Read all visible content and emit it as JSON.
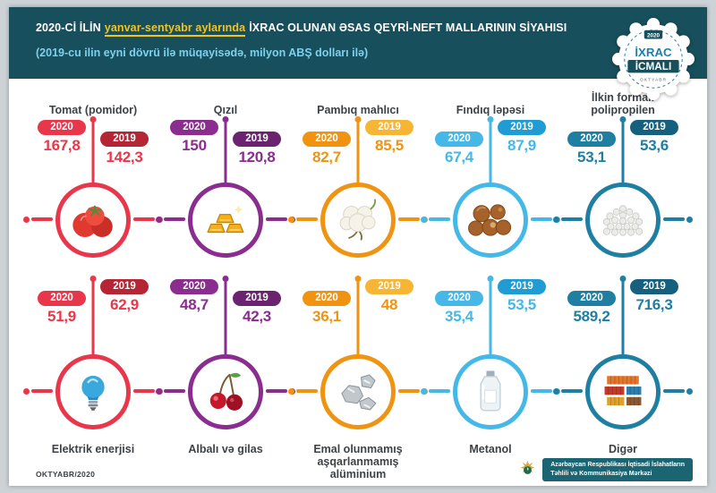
{
  "header": {
    "title_prefix": "2020-Cİ İLİN",
    "title_highlight": "yanvar-sentyabr aylarında",
    "title_suffix": "İXRAC OLUNAN ƏSAS QEYRİ-NEFT MALLARININ SİYAHISI",
    "subtitle": "(2019-cu ilin eyni dövrü ilə müqayisədə, milyon ABŞ dolları ilə)",
    "badge": {
      "year": "2020",
      "line1": "İXRAC",
      "line2": "İCMALI",
      "month": "OKTYABR"
    }
  },
  "labels": {
    "y2020": "2020",
    "y2019": "2019"
  },
  "colors": {
    "header_bg": "#174f5c",
    "highlight_yellow": "#f6c21c",
    "subtitle_blue": "#7ed0ec"
  },
  "products": [
    {
      "id": "tomato",
      "name": "Tomat (pomidor)",
      "value_2020": "167,8",
      "value_2019": "142,3",
      "color": "#e8374a",
      "color2": "#b52534",
      "icon": "tomato-icon"
    },
    {
      "id": "gold",
      "name": "Qızıl",
      "value_2020": "150",
      "value_2019": "120,8",
      "color": "#8a2d8e",
      "color2": "#6b2370",
      "icon": "gold-icon"
    },
    {
      "id": "cotton",
      "name": "Pambıq mahlıcı",
      "value_2020": "82,7",
      "value_2019": "85,5",
      "color": "#ef9311",
      "color2": "#f6b535",
      "icon": "cotton-icon"
    },
    {
      "id": "hazelnut",
      "name": "Fındıq ləpəsi",
      "value_2020": "67,4",
      "value_2019": "87,9",
      "color": "#45b8e8",
      "color2": "#1f9cd4",
      "icon": "hazelnut-icon"
    },
    {
      "id": "polypropylene",
      "name": "İlkin formalı polipropilen",
      "value_2020": "53,1",
      "value_2019": "53,6",
      "color": "#1f7fa2",
      "color2": "#15607e",
      "icon": "pellets-icon"
    },
    {
      "id": "electricity",
      "name": "Elektrik enerjisi",
      "value_2020": "51,9",
      "value_2019": "62,9",
      "color": "#e8374a",
      "color2": "#b52534",
      "icon": "bulb-icon"
    },
    {
      "id": "cherry",
      "name": "Albalı və gilas",
      "value_2020": "48,7",
      "value_2019": "42,3",
      "color": "#8a2d8e",
      "color2": "#6b2370",
      "icon": "cherries-icon"
    },
    {
      "id": "aluminium",
      "name": "Emal olunmamış aşqarlanmamış alüminium",
      "value_2020": "36,1",
      "value_2019": "48",
      "color": "#ef9311",
      "color2": "#f6b535",
      "icon": "aluminum-icon"
    },
    {
      "id": "methanol",
      "name": "Metanol",
      "value_2020": "35,4",
      "value_2019": "53,5",
      "color": "#45b8e8",
      "color2": "#1f9cd4",
      "icon": "methanol-icon"
    },
    {
      "id": "other",
      "name": "Digər",
      "value_2020": "589,2",
      "value_2019": "716,3",
      "color": "#1f7fa2",
      "color2": "#15607e",
      "icon": "containers-icon"
    }
  ],
  "footer": {
    "date": "OKTYABR/2020",
    "org_line1": "Azərbaycan Respublikası İqtisadi İslahatların",
    "org_line2": "Təhlili və Kommunikasiya Mərkəzi"
  },
  "chart_data": {
    "type": "bar",
    "title": "2020-ci ilin yanvar-sentyabr aylarında ixrac olunan əsas qeyri-neft mallarının siyahısı",
    "subtitle": "2019-cu ilin eyni dövrü ilə müqayisədə, milyon ABŞ dolları ilə",
    "categories": [
      "Tomat (pomidor)",
      "Qızıl",
      "Pambıq mahlıcı",
      "Fındıq ləpəsi",
      "İlkin formalı polipropilen",
      "Elektrik enerjisi",
      "Albalı və gilas",
      "Emal olunmamış aşqarlanmamış alüminium",
      "Metanol",
      "Digər"
    ],
    "series": [
      {
        "name": "2020",
        "values": [
          167.8,
          150,
          82.7,
          67.4,
          53.1,
          51.9,
          48.7,
          36.1,
          35.4,
          589.2
        ]
      },
      {
        "name": "2019",
        "values": [
          142.3,
          120.8,
          85.5,
          87.9,
          53.6,
          62.9,
          42.3,
          48,
          53.5,
          716.3
        ]
      }
    ],
    "unit": "milyon ABŞ dolları",
    "legend_position": "per-item pills",
    "grid": false
  }
}
